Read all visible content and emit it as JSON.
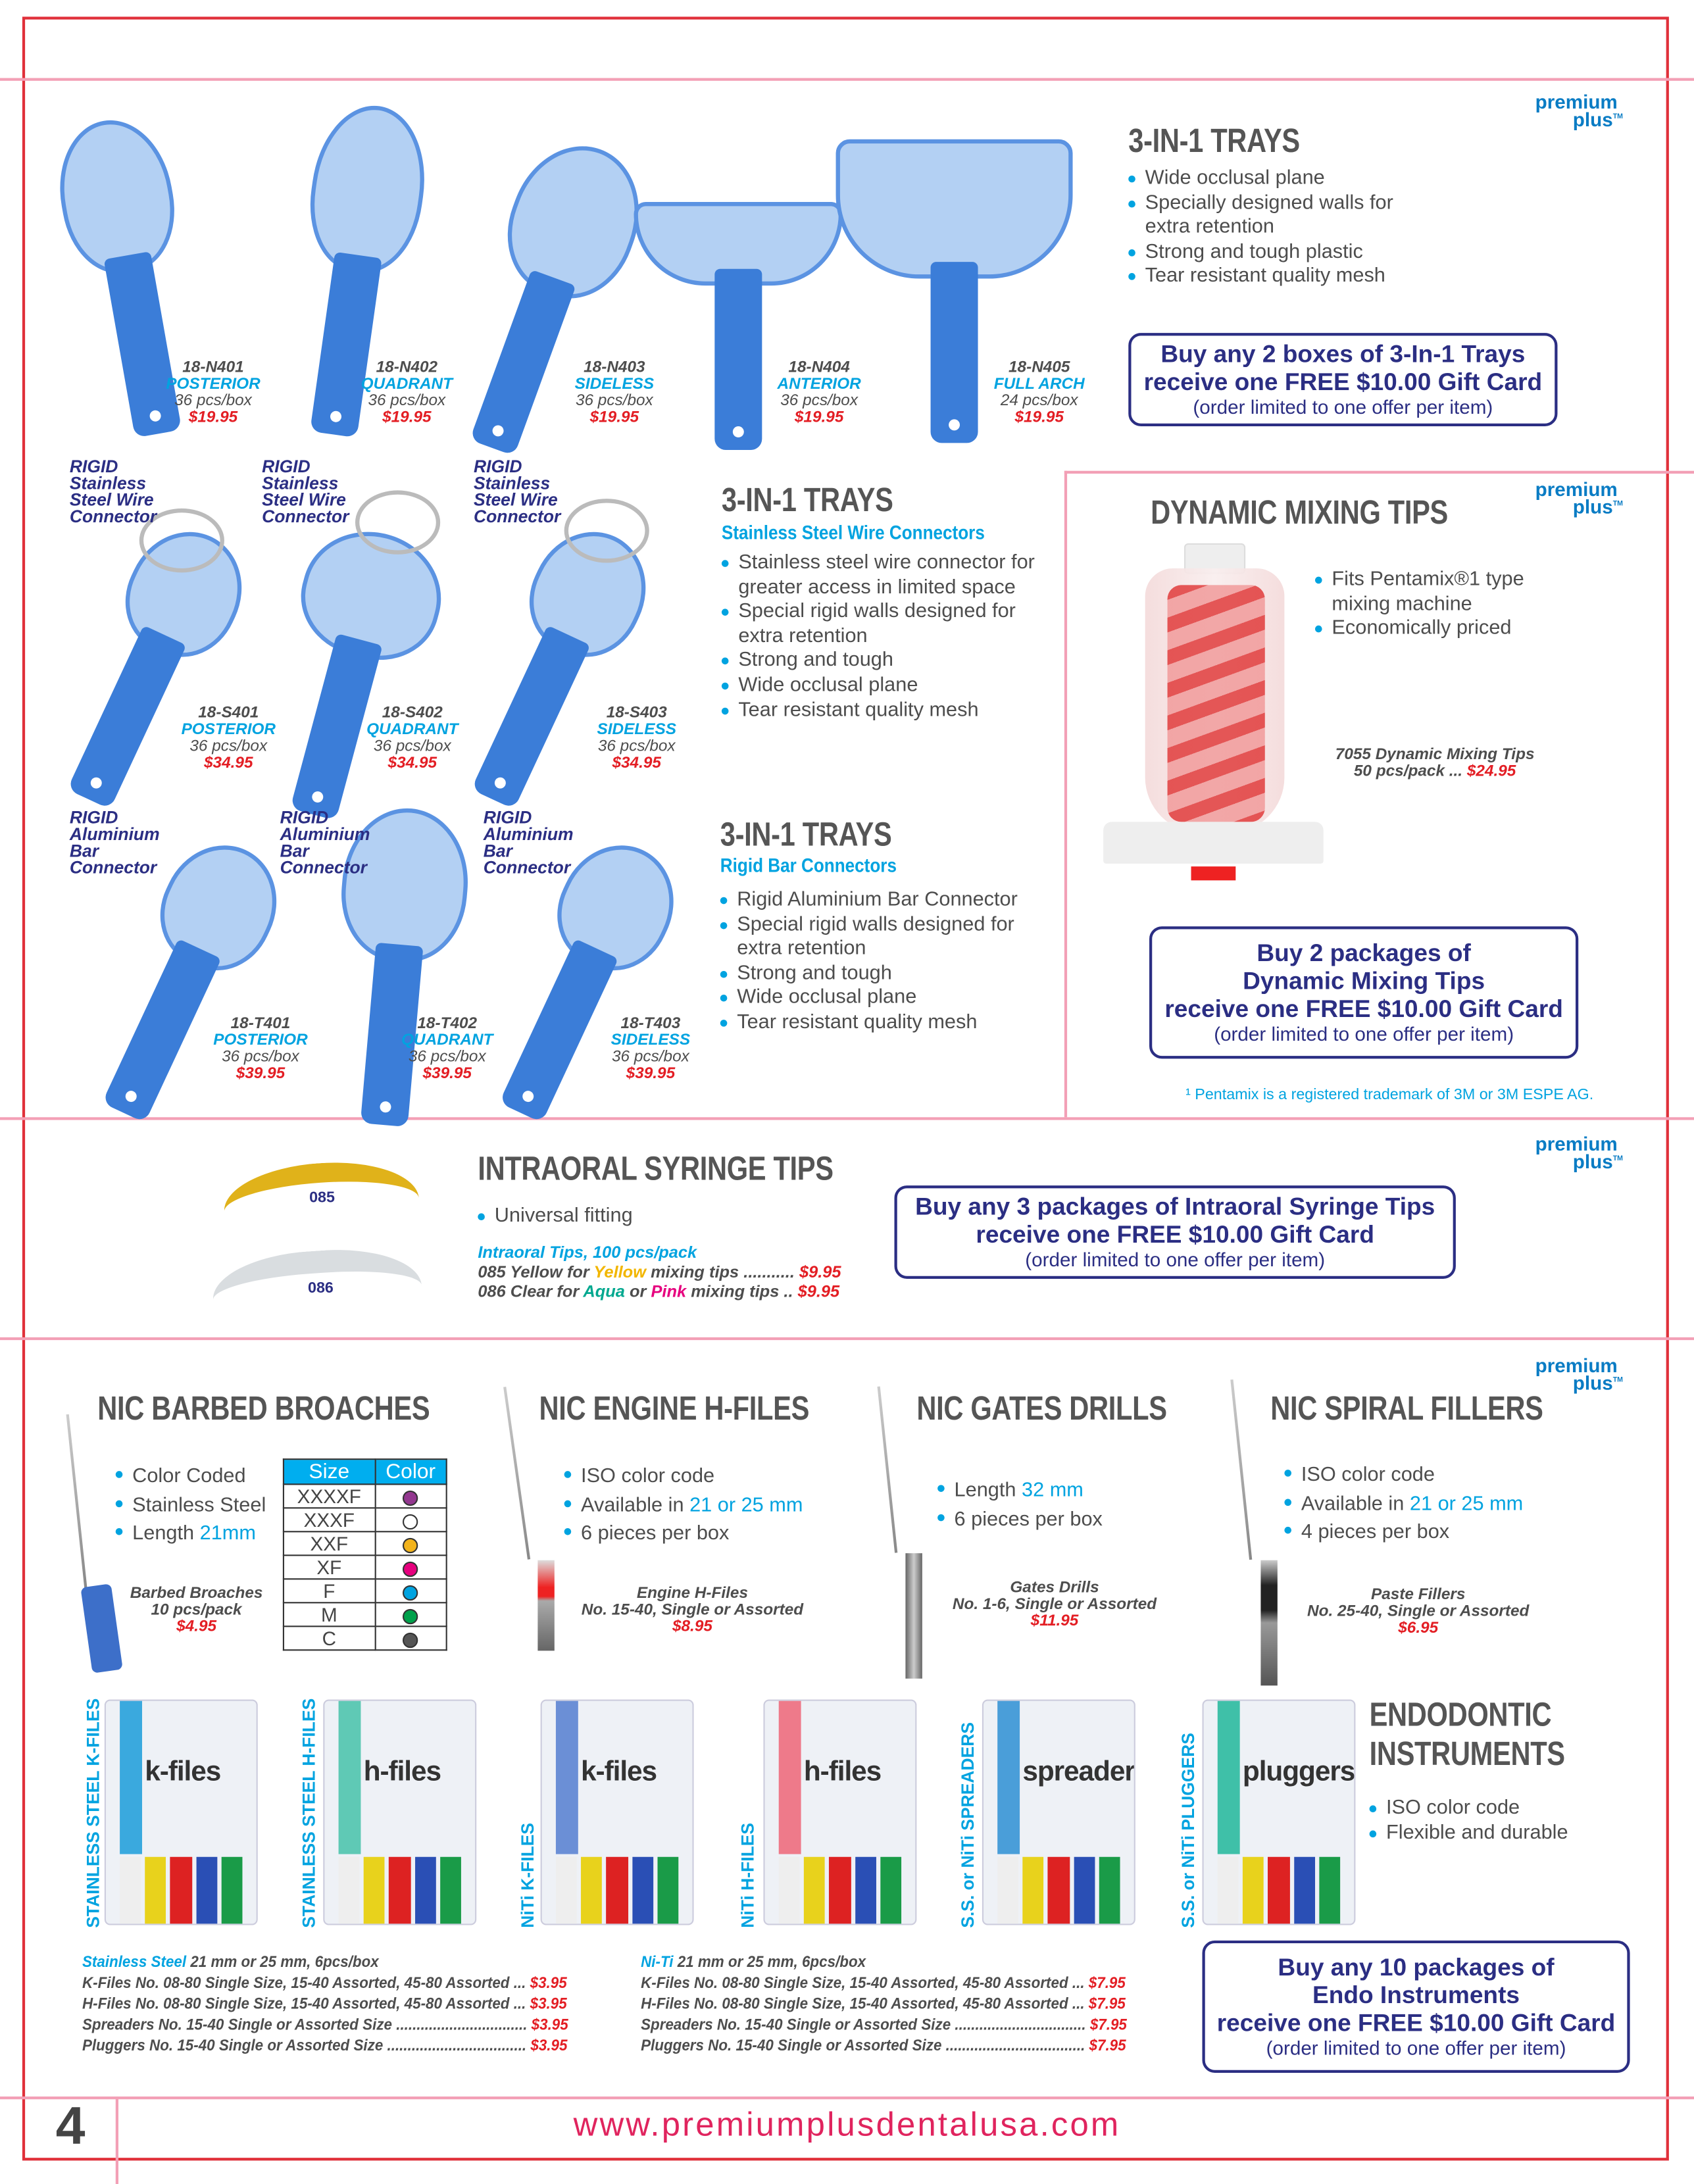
{
  "brand": {
    "logo": "premium plus",
    "tm": "TM",
    "accent": "#00a3e0",
    "navy": "#2b2e83",
    "price_red": "#e31e24"
  },
  "trays": {
    "title": "3-IN-1 TRAYS",
    "bullets": [
      "Wide occlusal plane",
      "Specially designed walls for extra retention",
      "Strong and tough plastic",
      "Tear resistant quality mesh"
    ],
    "products": [
      {
        "code": "18-N401",
        "name": "POSTERIOR",
        "qty": "36 pcs/box",
        "price": "$19.95"
      },
      {
        "code": "18-N402",
        "name": "QUADRANT",
        "qty": "36 pcs/box",
        "price": "$19.95"
      },
      {
        "code": "18-N403",
        "name": "SIDELESS",
        "qty": "36 pcs/box",
        "price": "$19.95"
      },
      {
        "code": "18-N404",
        "name": "ANTERIOR",
        "qty": "36 pcs/box",
        "price": "$19.95"
      },
      {
        "code": "18-N405",
        "name": "FULL ARCH",
        "qty": "24 pcs/box",
        "price": "$19.95"
      }
    ],
    "promo": {
      "line1": "Buy any 2 boxes of 3-In-1 Trays",
      "line2": "receive one FREE $10.00 Gift Card",
      "note": "(order limited to one offer per item)"
    }
  },
  "wire_trays": {
    "title": "3-IN-1 TRAYS",
    "subtitle": "Stainless Steel Wire Connectors",
    "connector_label": [
      "RIGID",
      "Stainless",
      "Steel Wire",
      "Connector"
    ],
    "bullets": [
      "Stainless steel wire connector for greater access in limited space",
      "Special rigid walls designed for extra retention",
      "Strong and tough",
      "Wide occlusal plane",
      "Tear resistant quality mesh"
    ],
    "products": [
      {
        "code": "18-S401",
        "name": "POSTERIOR",
        "qty": "36 pcs/box",
        "price": "$34.95"
      },
      {
        "code": "18-S402",
        "name": "QUADRANT",
        "qty": "36 pcs/box",
        "price": "$34.95"
      },
      {
        "code": "18-S403",
        "name": "SIDELESS",
        "qty": "36 pcs/box",
        "price": "$34.95"
      }
    ]
  },
  "bar_trays": {
    "title": "3-IN-1 TRAYS",
    "subtitle": "Rigid Bar Connectors",
    "connector_label": [
      "RIGID",
      "Aluminium",
      "Bar",
      "Connector"
    ],
    "bullets": [
      "Rigid Aluminium Bar Connector",
      "Special rigid walls designed for extra retention",
      "Strong and tough",
      "Wide occlusal plane",
      "Tear resistant quality mesh"
    ],
    "products": [
      {
        "code": "18-T401",
        "name": "POSTERIOR",
        "qty": "36 pcs/box",
        "price": "$39.95"
      },
      {
        "code": "18-T402",
        "name": "QUADRANT",
        "qty": "36 pcs/box",
        "price": "$39.95"
      },
      {
        "code": "18-T403",
        "name": "SIDELESS",
        "qty": "36 pcs/box",
        "price": "$39.95"
      }
    ]
  },
  "mixing": {
    "title": "DYNAMIC MIXING TIPS",
    "bullets": [
      "Fits Pentamix®1 type mixing machine",
      "Economically priced"
    ],
    "product": {
      "name": "7055 Dynamic Mixing Tips",
      "qty": "50 pcs/pack ...",
      "price": "$24.95"
    },
    "promo": {
      "line1": "Buy 2 packages of",
      "line2": "Dynamic Mixing Tips",
      "line3": "receive one FREE $10.00 Gift Card",
      "note": "(order limited to one offer per item)"
    },
    "footnote": "¹ Pentamix is a registered trademark of 3M or 3M ESPE AG."
  },
  "syringe": {
    "title": "INTRAORAL SYRINGE TIPS",
    "bullets": [
      "Universal fitting"
    ],
    "tip_labels": [
      "085",
      "086"
    ],
    "pricing_title": "Intraoral Tips, 100 pcs/pack",
    "lines": [
      {
        "a": "085 Yellow for ",
        "c": "Yellow",
        "c_color": "#f2b600",
        "b": " mixing tips ........... ",
        "price": "$9.95"
      },
      {
        "a": "086 Clear for ",
        "c": "Aqua",
        "c_color": "#00a88f",
        "m": " or ",
        "d": "Pink",
        "d_color": "#e6007e",
        "b": " mixing tips .. ",
        "price": "$9.95"
      }
    ],
    "promo": {
      "line1": "Buy any 3 packages of Intraoral Syringe Tips",
      "line2": "receive one FREE $10.00 Gift Card",
      "note": "(order limited to one offer per item)"
    }
  },
  "broaches": {
    "title": "NIC BARBED BROACHES",
    "bullets": [
      "Color Coded",
      "Stainless Steel",
      "Length "
    ],
    "length": "21mm",
    "product": {
      "name": "Barbed Broaches",
      "qty": "10 pcs/pack",
      "price": "$4.95"
    },
    "table": {
      "headers": [
        "Size",
        "Color"
      ],
      "rows": [
        {
          "size": "XXXXF",
          "color": "#93378f"
        },
        {
          "size": "XXXF",
          "color": "#ffffff"
        },
        {
          "size": "XXF",
          "color": "#f2b31b"
        },
        {
          "size": "XF",
          "color": "#e6007e"
        },
        {
          "size": "F",
          "color": "#00a3e0"
        },
        {
          "size": "M",
          "color": "#00a14b"
        },
        {
          "size": "C",
          "color": "#555555"
        }
      ]
    }
  },
  "hfiles": {
    "title": "NIC ENGINE H-FILES",
    "bullets": [
      "ISO color code",
      "Available in ",
      "6 pieces per box"
    ],
    "available": "21 or 25 mm",
    "product": {
      "name": "Engine H-Files",
      "qty": "No. 15-40, Single or Assorted",
      "price": "$8.95"
    }
  },
  "gates": {
    "title": "NIC GATES DRILLS",
    "bullets": [
      "Length ",
      "6 pieces per box"
    ],
    "length": "32 mm",
    "product": {
      "name": "Gates Drills",
      "qty": "No. 1-6, Single or Assorted",
      "price": "$11.95"
    }
  },
  "spiral": {
    "title": "NIC SPIRAL FILLERS",
    "bullets": [
      "ISO color code",
      "Available in ",
      "4 pieces per box"
    ],
    "available": "21 or 25 mm",
    "product": {
      "name": "Paste Fillers",
      "qty": "No. 25-40, Single or Assorted",
      "price": "$6.95"
    }
  },
  "boxes": [
    {
      "side": "STAINLESS STEEL K-FILES",
      "label": "k-files",
      "stripe": "#3aa9de"
    },
    {
      "side": "STAINLESS STEEL H-FILES",
      "label": "h-files",
      "stripe": "#5fc9b5"
    },
    {
      "side": "NiTi K-FILES",
      "label": "k-files",
      "stripe": "#6b8fd6"
    },
    {
      "side": "NiTi H-FILES",
      "label": "h-files",
      "stripe": "#ee7a8a"
    },
    {
      "side": "S.S. or NiTi SPREADERS",
      "label": "spreaders",
      "stripe": "#4a9ed9"
    },
    {
      "side": "S.S. or NiTi PLUGGERS",
      "label": "pluggers",
      "stripe": "#3fc0a8"
    }
  ],
  "endo": {
    "title_lines": [
      "ENDODONTIC",
      "INSTRUMENTS"
    ],
    "bullets": [
      "ISO color code",
      "Flexible and durable"
    ],
    "promo": {
      "line1": "Buy any 10 packages of",
      "line2": "Endo Instruments",
      "line3": "receive one FREE $10.00 Gift Card",
      "note": "(order limited to one offer per item)"
    },
    "price_lists": [
      {
        "type": "Stainless Steel",
        "spec": " 21 mm or 25 mm, 6pcs/box",
        "rows": [
          {
            "t": "K-Files No. 08-80 Single Size, 15-40 Assorted, 45-80 Assorted ... ",
            "p": "$3.95"
          },
          {
            "t": "H-Files No. 08-80 Single Size, 15-40 Assorted, 45-80 Assorted ... ",
            "p": "$3.95"
          },
          {
            "t": "Spreaders No. 15-40 Single or Assorted Size ................................ ",
            "p": "$3.95"
          },
          {
            "t": "Pluggers No. 15-40 Single or Assorted Size .................................. ",
            "p": "$3.95"
          }
        ]
      },
      {
        "type": "Ni-Ti",
        "spec": " 21 mm or 25 mm, 6pcs/box",
        "rows": [
          {
            "t": "K-Files No. 08-80 Single Size, 15-40 Assorted, 45-80 Assorted ... ",
            "p": "$7.95"
          },
          {
            "t": "H-Files No. 08-80 Single Size, 15-40 Assorted, 45-80 Assorted ... ",
            "p": "$7.95"
          },
          {
            "t": "Spreaders No. 15-40 Single or Assorted Size ................................ ",
            "p": "$7.95"
          },
          {
            "t": "Pluggers No. 15-40 Single or Assorted Size .................................. ",
            "p": "$7.95"
          }
        ]
      }
    ]
  },
  "footer": {
    "page_number": "4",
    "url": "www.premiumplusdentalusa.com"
  }
}
